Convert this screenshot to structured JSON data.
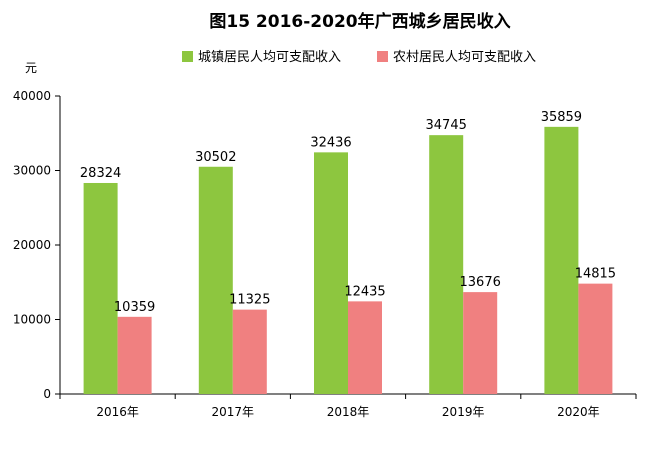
{
  "chart_data": {
    "type": "bar",
    "title": "图15 2016-2020年广西城乡居民收入",
    "ylabel": "元",
    "xlabel": "",
    "categories": [
      "2016年",
      "2017年",
      "2018年",
      "2019年",
      "2020年"
    ],
    "ylim": [
      0,
      40000
    ],
    "yticks": [
      0,
      10000,
      20000,
      30000,
      40000
    ],
    "grid": false,
    "legend_position": "top",
    "series": [
      {
        "name": "城镇居民人均可支配收入",
        "color": "#8DC63F",
        "values": [
          28324,
          30502,
          32436,
          34745,
          35859
        ]
      },
      {
        "name": "农村居民人均可支配收入",
        "color": "#F08080",
        "values": [
          10359,
          11325,
          12435,
          13676,
          14815
        ]
      }
    ]
  }
}
